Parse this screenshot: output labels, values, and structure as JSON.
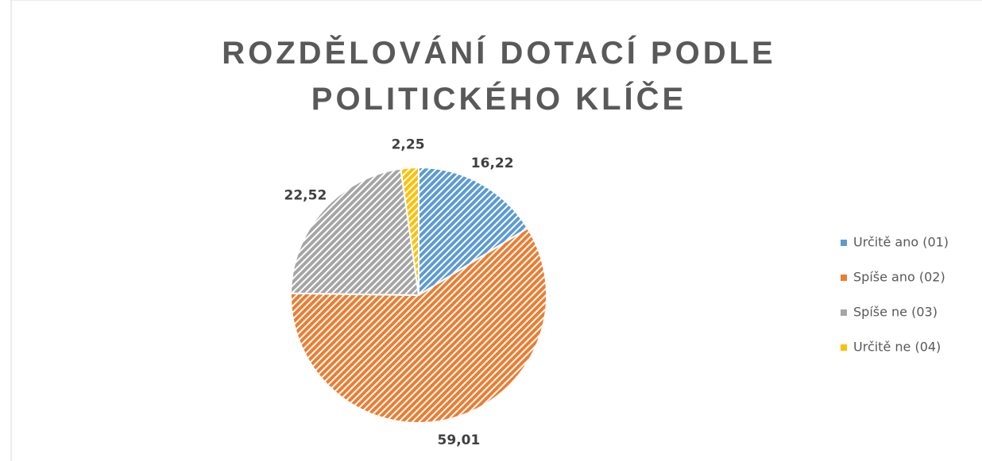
{
  "chart_data": {
    "type": "pie",
    "title": "ROZDĚLOVÁNÍ DOTACÍ PODLE POLITICKÉHO KLÍČE",
    "categories": [
      "Určitě ano (01)",
      "Spíše ano (02)",
      "Spíše ne (03)",
      "Určitě ne (04)"
    ],
    "values": [
      16.22,
      59.01,
      22.52,
      2.25
    ],
    "value_labels": [
      "16,22",
      "59,01",
      "22,52",
      "2,25"
    ],
    "colors": [
      "#5b9bd5",
      "#ed7d31",
      "#a5a5a5",
      "#ffc000"
    ],
    "legend": "right"
  }
}
